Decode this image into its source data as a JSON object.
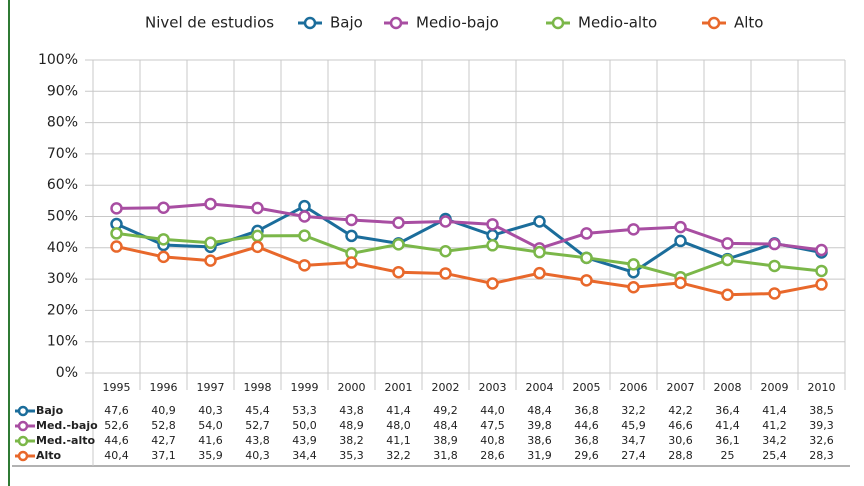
{
  "chart_data": {
    "type": "line",
    "legend_title": "Nivel de estudios",
    "categories": [
      "1995",
      "1996",
      "1997",
      "1998",
      "1999",
      "2000",
      "2001",
      "2002",
      "2003",
      "2004",
      "2005",
      "2006",
      "2007",
      "2008",
      "2009",
      "2010"
    ],
    "ylim": [
      0,
      100
    ],
    "yticks": [
      {
        "value": 0,
        "label": "0%"
      },
      {
        "value": 10,
        "label": "10%"
      },
      {
        "value": 20,
        "label": "20%"
      },
      {
        "value": 30,
        "label": "30%"
      },
      {
        "value": 40,
        "label": "40%"
      },
      {
        "value": 50,
        "label": "50%"
      },
      {
        "value": 60,
        "label": "60%"
      },
      {
        "value": 70,
        "label": "70%"
      },
      {
        "value": 80,
        "label": "80%"
      },
      {
        "value": 90,
        "label": "90%"
      },
      {
        "value": 100,
        "label": "100%"
      }
    ],
    "grid": true,
    "series": [
      {
        "name": "Bajo",
        "table_label": "Bajo",
        "color": "#1b6d9b",
        "values": [
          47.6,
          40.9,
          40.3,
          45.4,
          53.3,
          43.8,
          41.4,
          49.2,
          44.0,
          48.4,
          36.8,
          32.2,
          42.2,
          36.4,
          41.4,
          38.5
        ],
        "value_labels": [
          "47,6",
          "40,9",
          "40,3",
          "45,4",
          "53,3",
          "43,8",
          "41,4",
          "49,2",
          "44,0",
          "48,4",
          "36,8",
          "32,2",
          "42,2",
          "36,4",
          "41,4",
          "38,5"
        ]
      },
      {
        "name": "Medio-bajo",
        "table_label": "Med.-bajo",
        "color": "#a84ea2",
        "values": [
          52.6,
          52.8,
          54.0,
          52.7,
          50.0,
          48.9,
          48.0,
          48.4,
          47.5,
          39.8,
          44.6,
          45.9,
          46.6,
          41.4,
          41.2,
          39.3
        ],
        "value_labels": [
          "52,6",
          "52,8",
          "54,0",
          "52,7",
          "50,0",
          "48,9",
          "48,0",
          "48,4",
          "47,5",
          "39,8",
          "44,6",
          "45,9",
          "46,6",
          "41,4",
          "41,2",
          "39,3"
        ]
      },
      {
        "name": "Medio-alto",
        "table_label": "Med.-alto",
        "color": "#7bb749",
        "values": [
          44.6,
          42.7,
          41.6,
          43.8,
          43.9,
          38.2,
          41.1,
          38.9,
          40.8,
          38.6,
          36.8,
          34.7,
          30.6,
          36.1,
          34.2,
          32.6
        ],
        "value_labels": [
          "44,6",
          "42,7",
          "41,6",
          "43,8",
          "43,9",
          "38,2",
          "41,1",
          "38,9",
          "40,8",
          "38,6",
          "36,8",
          "34,7",
          "30,6",
          "36,1",
          "34,2",
          "32,6"
        ]
      },
      {
        "name": "Alto",
        "table_label": "Alto",
        "color": "#e8682b",
        "values": [
          40.4,
          37.1,
          35.9,
          40.3,
          34.4,
          35.3,
          32.2,
          31.8,
          28.6,
          31.9,
          29.6,
          27.4,
          28.8,
          25,
          25.4,
          28.3
        ],
        "value_labels": [
          "40,4",
          "37,1",
          "35,9",
          "40,3",
          "34,4",
          "35,3",
          "32,2",
          "31,8",
          "28,6",
          "31,9",
          "29,6",
          "27,4",
          "28,8",
          "25",
          "25,4",
          "28,3"
        ]
      }
    ]
  }
}
